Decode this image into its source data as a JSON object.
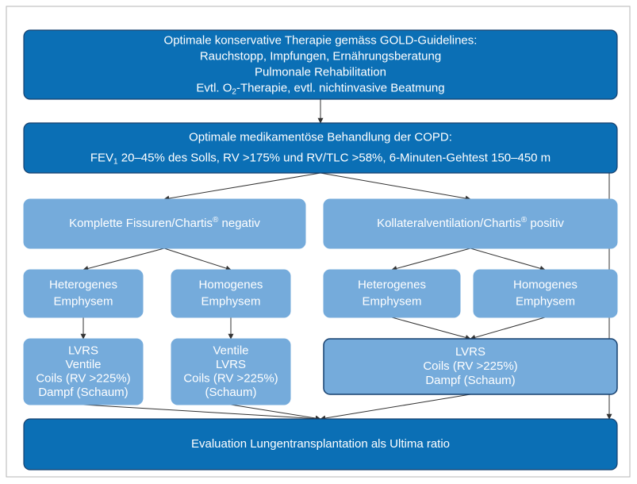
{
  "nodes": [
    {
      "lines": [
        [
          {
            "text": "Optimale konservative Therapie gemäss GOLD-Guidelines:"
          }
        ],
        [
          {
            "text": "Rauchstopp, Impfungen, Ernährungsberatung"
          }
        ],
        [
          {
            "text": "Pulmonale Rehabilitation"
          }
        ],
        [
          {
            "text": "Evtl. O"
          },
          {
            "text": "2",
            "style": "sub"
          },
          {
            "text": "-Therapie, evtl. nichtinvasive Beatmung"
          }
        ]
      ]
    },
    {
      "lines": [
        [
          {
            "text": "Optimale medikamentöse Behandlung der COPD:"
          }
        ],
        [
          {
            "text": "FEV"
          },
          {
            "text": "1",
            "style": "sub"
          },
          {
            "text": " 20–45% des Solls, RV >175% und RV/TLC >58%, 6-Minuten-Gehtest 150–450 m"
          }
        ]
      ]
    },
    {
      "lines": [
        [
          {
            "text": "Komplette Fissuren/Chartis"
          },
          {
            "text": "®",
            "style": "sup"
          },
          {
            "text": " negativ"
          }
        ]
      ]
    },
    {
      "lines": [
        [
          {
            "text": "Kollateralventilation/Chartis"
          },
          {
            "text": "®",
            "style": "sup"
          },
          {
            "text": " positiv"
          }
        ]
      ]
    },
    {
      "lines": [
        [
          {
            "text": "Heterogenes"
          }
        ],
        [
          {
            "text": "Emphysem"
          }
        ]
      ]
    },
    {
      "lines": [
        [
          {
            "text": "Homogenes"
          }
        ],
        [
          {
            "text": "Emphysem"
          }
        ]
      ]
    },
    {
      "lines": [
        [
          {
            "text": "Heterogenes"
          }
        ],
        [
          {
            "text": "Emphysem"
          }
        ]
      ]
    },
    {
      "lines": [
        [
          {
            "text": "Homogenes"
          }
        ],
        [
          {
            "text": "Emphysem"
          }
        ]
      ]
    },
    {
      "lines": [
        [
          {
            "text": "LVRS"
          }
        ],
        [
          {
            "text": "Ventile"
          }
        ],
        [
          {
            "text": "Coils (RV >225%)"
          }
        ],
        [
          {
            "text": "Dampf (Schaum)"
          }
        ]
      ]
    },
    {
      "lines": [
        [
          {
            "text": "Ventile"
          }
        ],
        [
          {
            "text": "LVRS"
          }
        ],
        [
          {
            "text": "Coils (RV >225%)"
          }
        ],
        [
          {
            "text": "(Schaum)"
          }
        ]
      ]
    },
    {
      "lines": [
        [
          {
            "text": "LVRS"
          }
        ],
        [
          {
            "text": "Coils (RV >225%)"
          }
        ],
        [
          {
            "text": "Dampf (Schaum)"
          }
        ]
      ]
    },
    {
      "lines": [
        [
          {
            "text": "Evaluation Lungentransplantation als Ultima ratio"
          }
        ]
      ]
    }
  ]
}
